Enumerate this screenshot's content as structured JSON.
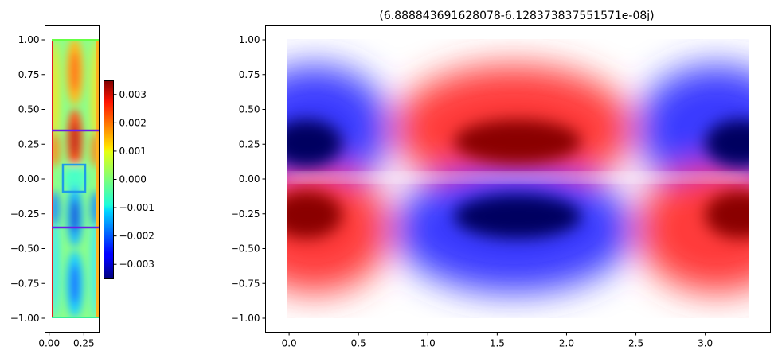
{
  "chart_data": [
    {
      "type": "heatmap",
      "title": "",
      "xlabel": "",
      "ylabel": "",
      "colormap": "jet",
      "xlim": [
        -0.03,
        0.36
      ],
      "ylim": [
        -1.1,
        1.1
      ],
      "domain": {
        "x": [
          0.0,
          0.33
        ],
        "y": [
          -1.0,
          1.0
        ]
      },
      "xticks": [
        0.0,
        0.25
      ],
      "xtick_labels": [
        "0.00",
        "0.25"
      ],
      "yticks": [
        1.0,
        0.75,
        0.5,
        0.25,
        0.0,
        -0.25,
        -0.5,
        -0.75,
        -1.0
      ],
      "ytick_labels": [
        "1.00",
        "0.75",
        "0.50",
        "0.25",
        "0.00",
        "−0.25",
        "−0.50",
        "−0.75",
        "−1.00"
      ],
      "colorbar": {
        "range": [
          -0.0035,
          0.0035
        ],
        "ticks": [
          0.003,
          0.002,
          0.001,
          0.0,
          -0.001,
          -0.002,
          -0.003
        ],
        "tick_labels": [
          "0.003",
          "0.002",
          "0.001",
          "0.000",
          "−0.001",
          "−0.002",
          "−0.003"
        ]
      },
      "overlays": {
        "horizontal_lines_y": [
          0.35,
          -0.35
        ],
        "horizontal_lines_color": "#6a1ee8",
        "box": {
          "x": [
            0.09,
            0.25
          ],
          "y": [
            -0.1,
            0.1
          ],
          "color": "#1e9be8"
        }
      }
    },
    {
      "type": "heatmap",
      "title": "(6.888843691628078-6.128373837551571e-08j)",
      "xlabel": "",
      "ylabel": "",
      "colormap": "seismic",
      "xlim": [
        -0.17,
        3.47
      ],
      "ylim": [
        -1.1,
        1.1
      ],
      "domain": {
        "x": [
          0.0,
          3.3
        ],
        "y": [
          -1.0,
          1.0
        ]
      },
      "xticks": [
        0.0,
        0.5,
        1.0,
        1.5,
        2.0,
        2.5,
        3.0
      ],
      "xtick_labels": [
        "0.0",
        "0.5",
        "1.0",
        "1.5",
        "2.0",
        "2.5",
        "3.0"
      ],
      "yticks": [
        1.0,
        0.75,
        0.5,
        0.25,
        0.0,
        -0.25,
        -0.5,
        -0.75,
        -1.0
      ],
      "ytick_labels": [
        "1.00",
        "0.75",
        "0.50",
        "0.25",
        "0.00",
        "−0.25",
        "−0.50",
        "−0.75",
        "−1.00"
      ]
    }
  ]
}
